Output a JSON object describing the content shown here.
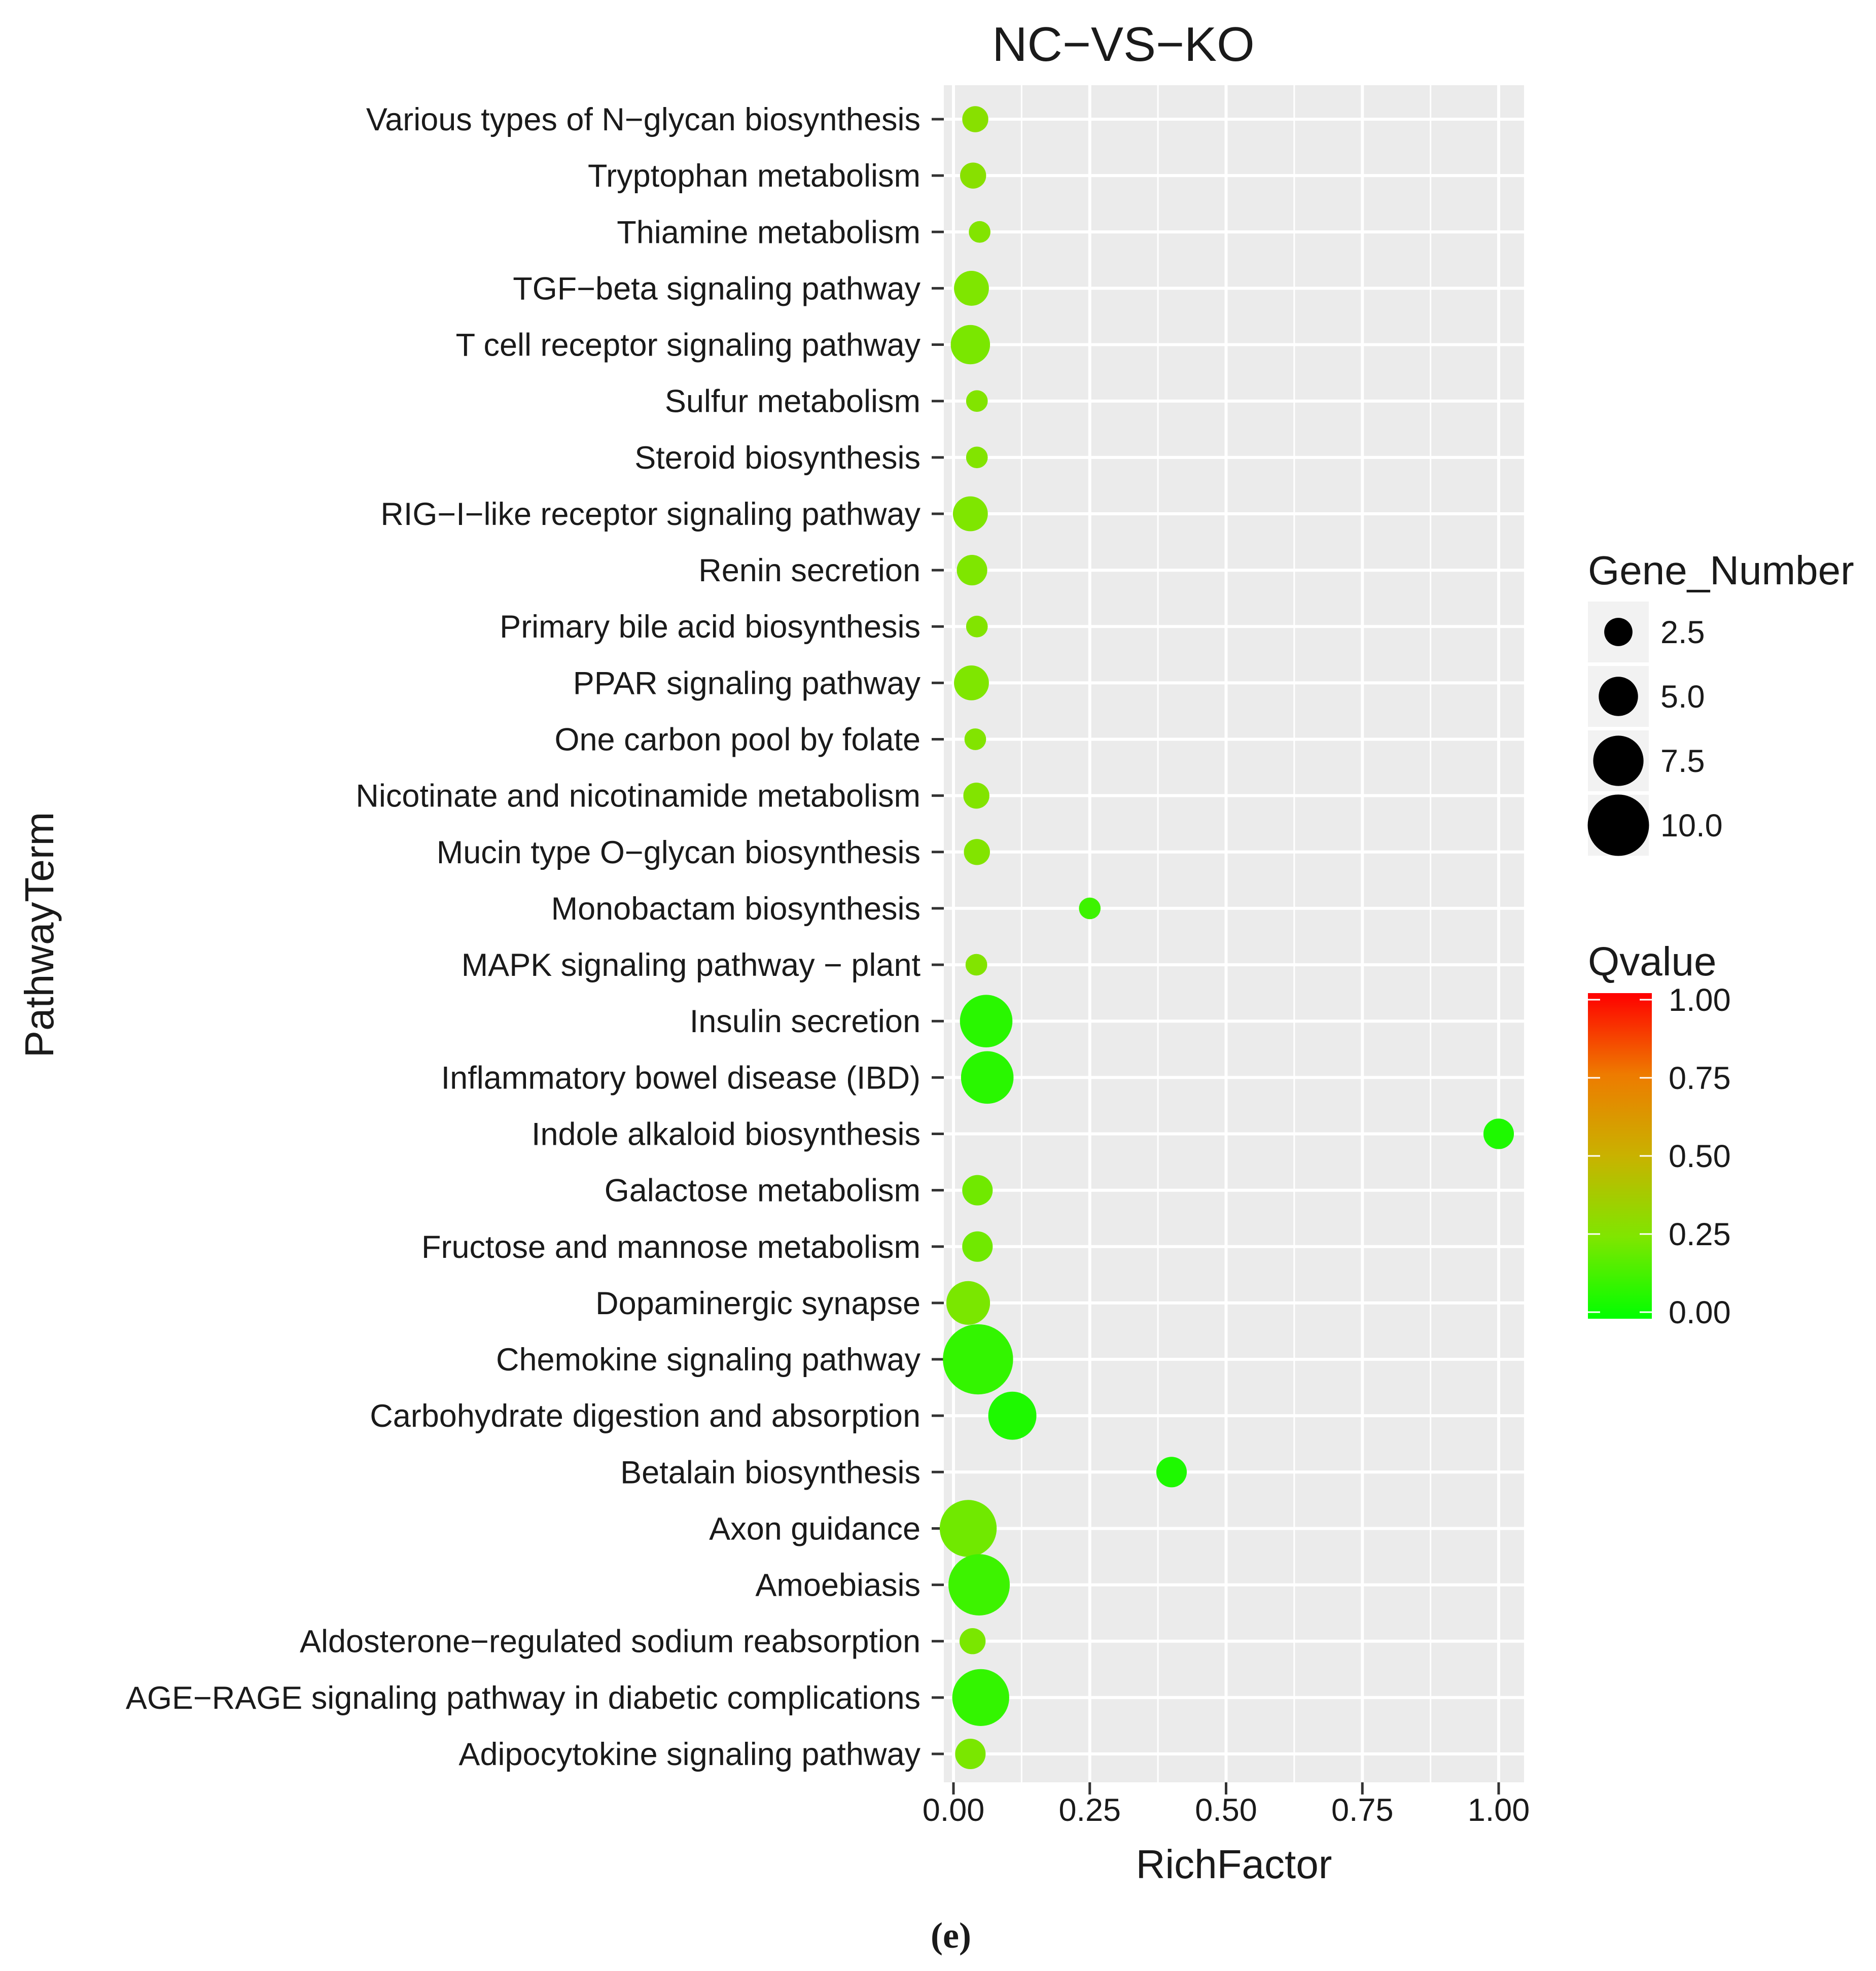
{
  "chart_data": {
    "type": "scatter",
    "title": "NC−VS−KO",
    "xlabel": "RichFactor",
    "ylabel": "PathwayTerm",
    "xlim": [
      0,
      1
    ],
    "x_ticks": [
      "0.00",
      "0.25",
      "0.50",
      "0.75",
      "1.00"
    ],
    "x_tick_values": [
      0,
      0.25,
      0.5,
      0.75,
      1.0
    ],
    "caption": "(e)",
    "points": [
      {
        "term": "Various types of N−glycan biosynthesis",
        "rich_factor": 0.04,
        "gene_number": 2,
        "qvalue": 0.28
      },
      {
        "term": "Tryptophan metabolism",
        "rich_factor": 0.036,
        "gene_number": 2,
        "qvalue": 0.28
      },
      {
        "term": "Thiamine metabolism",
        "rich_factor": 0.048,
        "gene_number": 1,
        "qvalue": 0.26
      },
      {
        "term": "TGF−beta signaling pathway",
        "rich_factor": 0.033,
        "gene_number": 4,
        "qvalue": 0.25
      },
      {
        "term": "T cell receptor signaling pathway",
        "rich_factor": 0.031,
        "gene_number": 5,
        "qvalue": 0.24
      },
      {
        "term": "Sulfur metabolism",
        "rich_factor": 0.043,
        "gene_number": 1,
        "qvalue": 0.26
      },
      {
        "term": "Steroid biosynthesis",
        "rich_factor": 0.043,
        "gene_number": 1,
        "qvalue": 0.26
      },
      {
        "term": "RIG−I−like receptor signaling pathway",
        "rich_factor": 0.031,
        "gene_number": 4,
        "qvalue": 0.25
      },
      {
        "term": "Renin secretion",
        "rich_factor": 0.034,
        "gene_number": 3,
        "qvalue": 0.25
      },
      {
        "term": "Primary bile acid biosynthesis",
        "rich_factor": 0.043,
        "gene_number": 1,
        "qvalue": 0.26
      },
      {
        "term": "PPAR signaling pathway",
        "rich_factor": 0.033,
        "gene_number": 4,
        "qvalue": 0.25
      },
      {
        "term": "One carbon pool by folate",
        "rich_factor": 0.04,
        "gene_number": 1,
        "qvalue": 0.26
      },
      {
        "term": "Nicotinate and nicotinamide metabolism",
        "rich_factor": 0.042,
        "gene_number": 2,
        "qvalue": 0.26
      },
      {
        "term": "Mucin type O−glycan biosynthesis",
        "rich_factor": 0.043,
        "gene_number": 2,
        "qvalue": 0.26
      },
      {
        "term": "Monobactam biosynthesis",
        "rich_factor": 0.25,
        "gene_number": 1,
        "qvalue": 0.12
      },
      {
        "term": "MAPK signaling pathway − plant",
        "rich_factor": 0.042,
        "gene_number": 1,
        "qvalue": 0.26
      },
      {
        "term": "Insulin secretion",
        "rich_factor": 0.06,
        "gene_number": 8,
        "qvalue": 0.08
      },
      {
        "term": "Inflammatory bowel disease (IBD)",
        "rich_factor": 0.062,
        "gene_number": 8,
        "qvalue": 0.08
      },
      {
        "term": "Indole alkaloid biosynthesis",
        "rich_factor": 1.0,
        "gene_number": 3,
        "qvalue": 0.06
      },
      {
        "term": "Galactose metabolism",
        "rich_factor": 0.044,
        "gene_number": 3,
        "qvalue": 0.22
      },
      {
        "term": "Fructose and mannose metabolism",
        "rich_factor": 0.044,
        "gene_number": 3,
        "qvalue": 0.22
      },
      {
        "term": "Dopaminergic synapse",
        "rich_factor": 0.027,
        "gene_number": 6,
        "qvalue": 0.24
      },
      {
        "term": "Chemokine signaling pathway",
        "rich_factor": 0.045,
        "gene_number": 12,
        "qvalue": 0.1
      },
      {
        "term": "Carbohydrate digestion and absorption",
        "rich_factor": 0.108,
        "gene_number": 7,
        "qvalue": 0.06
      },
      {
        "term": "Betalain biosynthesis",
        "rich_factor": 0.4,
        "gene_number": 3,
        "qvalue": 0.06
      },
      {
        "term": "Axon guidance",
        "rich_factor": 0.027,
        "gene_number": 9,
        "qvalue": 0.22
      },
      {
        "term": "Amoebiasis",
        "rich_factor": 0.047,
        "gene_number": 10,
        "qvalue": 0.12
      },
      {
        "term": "Aldosterone−regulated sodium reabsorption",
        "rich_factor": 0.035,
        "gene_number": 2,
        "qvalue": 0.24
      },
      {
        "term": "AGE−RAGE signaling pathway in diabetic complications",
        "rich_factor": 0.05,
        "gene_number": 9,
        "qvalue": 0.1
      },
      {
        "term": "Adipocytokine signaling pathway",
        "rich_factor": 0.031,
        "gene_number": 3,
        "qvalue": 0.24
      }
    ],
    "size_legend": {
      "title": "Gene_Number",
      "values": [
        2.5,
        5.0,
        7.5,
        10.0
      ],
      "labels": [
        "2.5",
        "5.0",
        "7.5",
        "10.0"
      ]
    },
    "color_legend": {
      "title": "Qvalue",
      "range": [
        0,
        1
      ],
      "ticks": [
        1.0,
        0.75,
        0.5,
        0.25,
        0.0
      ],
      "labels": [
        "1.00",
        "0.75",
        "0.50",
        "0.25",
        "0.00"
      ],
      "color_low": "#00ff00",
      "color_high": "#ff0000"
    },
    "colors": {
      "panel_bg": "#ebebeb",
      "grid": "#ffffff",
      "point_legend": "#000000"
    }
  }
}
